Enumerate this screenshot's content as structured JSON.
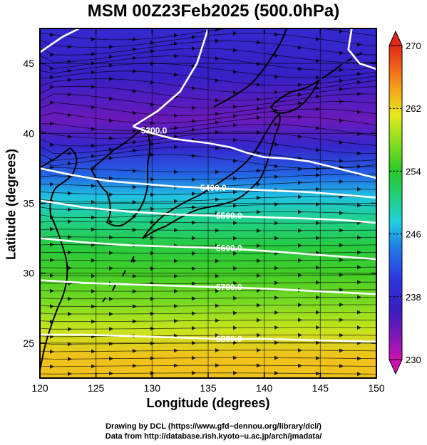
{
  "chart_data": {
    "type": "heatmap",
    "title": "MSM 00Z23Feb2025 (500.0hPa)",
    "xlabel": "Longitude (degrees)",
    "ylabel": "Latitude  (degrees)",
    "xlim": [
      120,
      150
    ],
    "ylim": [
      22.5,
      47.5
    ],
    "xticks": [
      120,
      125,
      130,
      135,
      140,
      145,
      150
    ],
    "yticks": [
      25,
      30,
      35,
      40,
      45
    ],
    "colorbar": {
      "min": 230,
      "max": 270,
      "ticks": [
        230,
        238,
        246,
        254,
        262,
        270
      ]
    },
    "temperature_field": [
      {
        "lat": 24.0,
        "value": 263
      },
      {
        "lat": 26.0,
        "value": 260
      },
      {
        "lat": 28.0,
        "value": 257
      },
      {
        "lat": 30.0,
        "value": 255
      },
      {
        "lat": 32.0,
        "value": 253
      },
      {
        "lat": 34.0,
        "value": 250
      },
      {
        "lat": 35.5,
        "value": 247
      },
      {
        "lat": 37.0,
        "value": 243
      },
      {
        "lat": 39.0,
        "value": 238
      },
      {
        "lat": 41.0,
        "value": 234
      },
      {
        "lat": 44.0,
        "value": 237
      },
      {
        "lat": 47.0,
        "value": 238
      }
    ],
    "height_contours": [
      {
        "label": "5300.0",
        "points": [
          [
            120,
            45.8
          ],
          [
            122,
            46.9
          ],
          [
            123.5,
            47.5
          ]
        ]
      },
      {
        "label": "5300.0",
        "points": [
          [
            128.3,
            40.5
          ],
          [
            129.3,
            41.0
          ],
          [
            130.5,
            41.6
          ],
          [
            132.5,
            43.0
          ],
          [
            134,
            45.0
          ],
          [
            135,
            47.5
          ]
        ]
      },
      {
        "label": "5300.0",
        "points": [
          [
            147.8,
            47.5
          ],
          [
            147.5,
            46.0
          ],
          [
            148.5,
            45.0
          ],
          [
            150,
            44.6
          ]
        ]
      },
      {
        "label": "5300.0",
        "points": [
          [
            128.3,
            40.5
          ],
          [
            130,
            40.0
          ],
          [
            132,
            39.6
          ],
          [
            135,
            39.3
          ],
          [
            137,
            39.0
          ],
          [
            138.5,
            38.6
          ],
          [
            140,
            38.3
          ],
          [
            142,
            38.2
          ],
          [
            144,
            38.0
          ],
          [
            146,
            37.6
          ],
          [
            148,
            37.2
          ],
          [
            150,
            36.8
          ]
        ]
      },
      {
        "label": "5400.0",
        "points": [
          [
            120,
            37.5
          ],
          [
            123,
            37.0
          ],
          [
            126,
            36.6
          ],
          [
            129,
            36.4
          ],
          [
            132,
            36.2
          ],
          [
            135,
            36.1
          ],
          [
            138,
            36.0
          ],
          [
            141,
            35.9
          ],
          [
            144,
            35.8
          ],
          [
            147,
            35.6
          ],
          [
            150,
            35.4
          ]
        ]
      },
      {
        "label": "5500.0",
        "points": [
          [
            120,
            35.2
          ],
          [
            124,
            34.7
          ],
          [
            128,
            34.4
          ],
          [
            132,
            34.2
          ],
          [
            136,
            34.1
          ],
          [
            140,
            34.0
          ],
          [
            144,
            33.9
          ],
          [
            147,
            33.8
          ],
          [
            150,
            33.6
          ]
        ]
      },
      {
        "label": "5600.0",
        "points": [
          [
            120,
            32.5
          ],
          [
            124,
            32.2
          ],
          [
            128,
            32.0
          ],
          [
            132,
            31.9
          ],
          [
            136,
            31.8
          ],
          [
            140,
            31.6
          ],
          [
            145,
            31.3
          ],
          [
            150,
            31.0
          ]
        ]
      },
      {
        "label": "5700.0",
        "points": [
          [
            120,
            29.5
          ],
          [
            124,
            29.3
          ],
          [
            128,
            29.2
          ],
          [
            132,
            29.1
          ],
          [
            136,
            29.0
          ],
          [
            140,
            28.9
          ],
          [
            145,
            28.7
          ],
          [
            150,
            28.5
          ]
        ]
      },
      {
        "label": "5800.0",
        "points": [
          [
            120,
            25.6
          ],
          [
            124,
            25.6
          ],
          [
            128,
            25.5
          ],
          [
            132,
            25.4
          ],
          [
            136,
            25.3
          ],
          [
            140,
            25.3
          ],
          [
            145,
            25.2
          ],
          [
            150,
            25.1
          ]
        ]
      }
    ]
  },
  "credits": {
    "line1": "Drawing by DCL (https://www.gfd−dennou.org/library/dcl/)",
    "line2": "Data from http://database.rish.kyoto−u.ac.jp/arch/jmadata/"
  }
}
